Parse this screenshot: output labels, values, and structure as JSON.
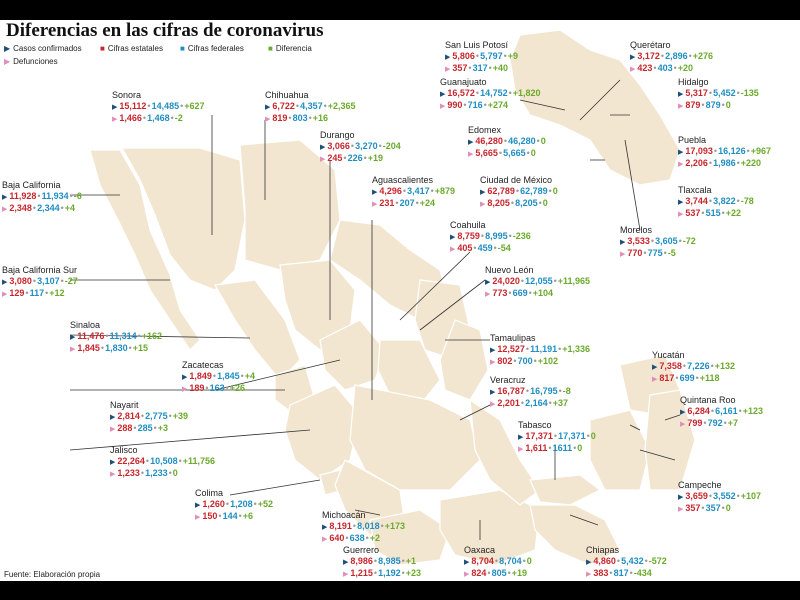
{
  "title": "Diferencias en las cifras de coronavirus",
  "legend": {
    "casos": "Casos confirmados",
    "estatales": "Cifras estatales",
    "federales": "Cifras federales",
    "diferencia": "Diferencia",
    "defunciones": "Defunciones"
  },
  "colors": {
    "estatal": "#c8262c",
    "federal": "#1f8ec2",
    "diferencia": "#6aaa2b",
    "casos": "#1f4e79",
    "defunciones": "#e08fb8",
    "map": "#f3e6d1"
  },
  "source": "Fuente: Elaboración propia",
  "states": [
    {
      "name": "Sonora",
      "c": [
        "15,112",
        "14,485",
        "+627"
      ],
      "d": [
        "1,466",
        "1,468",
        "-2"
      ]
    },
    {
      "name": "Chihuahua",
      "c": [
        "6,722",
        "4,357",
        "+2,365"
      ],
      "d": [
        "819",
        "803",
        "+16"
      ]
    },
    {
      "name": "Baja California",
      "c": [
        "11,928",
        "11,934",
        "-6"
      ],
      "d": [
        "2,348",
        "2,344",
        "+4"
      ]
    },
    {
      "name": "Durango",
      "c": [
        "3,066",
        "3,270",
        "-204"
      ],
      "d": [
        "245",
        "226",
        "+19"
      ]
    },
    {
      "name": "Aguascalientes",
      "c": [
        "4,296",
        "3,417",
        "+879"
      ],
      "d": [
        "231",
        "207",
        "+24"
      ]
    },
    {
      "name": "Baja California Sur",
      "c": [
        "3,080",
        "3,107",
        "-27"
      ],
      "d": [
        "129",
        "117",
        "+12"
      ]
    },
    {
      "name": "Coahuila",
      "c": [
        "8,759",
        "8,995",
        "-236"
      ],
      "d": [
        "405",
        "459",
        "-54"
      ]
    },
    {
      "name": "Nuevo León",
      "c": [
        "24,020",
        "12,055",
        "+11,965"
      ],
      "d": [
        "773",
        "669",
        "+104"
      ]
    },
    {
      "name": "Sinaloa",
      "c": [
        "11,476",
        "11,314",
        "+162"
      ],
      "d": [
        "1,845",
        "1,830",
        "+15"
      ]
    },
    {
      "name": "Zacatecas",
      "c": [
        "1,849",
        "1,845",
        "+4"
      ],
      "d": [
        "189",
        "163",
        "+26"
      ]
    },
    {
      "name": "Tamaulipas",
      "c": [
        "12,527",
        "11,191",
        "+1,336"
      ],
      "d": [
        "802",
        "700",
        "+102"
      ]
    },
    {
      "name": "Nayarit",
      "c": [
        "2,814",
        "2,775",
        "+39"
      ],
      "d": [
        "288",
        "285",
        "+3"
      ]
    },
    {
      "name": "Veracruz",
      "c": [
        "16,787",
        "16,795",
        "-8"
      ],
      "d": [
        "2,201",
        "2,164",
        "+37"
      ]
    },
    {
      "name": "Jalisco",
      "c": [
        "22,264",
        "10,508",
        "+11,756"
      ],
      "d": [
        "1,233",
        "1,233",
        "0"
      ]
    },
    {
      "name": "Tabasco",
      "c": [
        "17,371",
        "17,371",
        "0"
      ],
      "d": [
        "1,611",
        "1611",
        "0"
      ]
    },
    {
      "name": "Colima",
      "c": [
        "1,260",
        "1,208",
        "+52"
      ],
      "d": [
        "150",
        "144",
        "+6"
      ]
    },
    {
      "name": "Michoacán",
      "c": [
        "8,191",
        "8,018",
        "+173"
      ],
      "d": [
        "640",
        "638",
        "+2"
      ]
    },
    {
      "name": "Guerrero",
      "c": [
        "8,986",
        "8,985",
        "+1"
      ],
      "d": [
        "1,215",
        "1,192",
        "+23"
      ]
    },
    {
      "name": "Oaxaca",
      "c": [
        "8,704",
        "8,704",
        "0"
      ],
      "d": [
        "824",
        "805",
        "+19"
      ]
    },
    {
      "name": "Chiapas",
      "c": [
        "4,860",
        "5,432",
        "-572"
      ],
      "d": [
        "383",
        "817",
        "-434"
      ]
    },
    {
      "name": "San Luis Potosí",
      "c": [
        "5,806",
        "5,797",
        "+9"
      ],
      "d": [
        "357",
        "317",
        "+40"
      ]
    },
    {
      "name": "Guanajuato",
      "c": [
        "16,572",
        "14,752",
        "+1,820"
      ],
      "d": [
        "990",
        "716",
        "+274"
      ]
    },
    {
      "name": "Querétaro",
      "c": [
        "3,172",
        "2,896",
        "+276"
      ],
      "d": [
        "423",
        "403",
        "+20"
      ]
    },
    {
      "name": "Hidalgo",
      "c": [
        "5,317",
        "5,452",
        "-135"
      ],
      "d": [
        "879",
        "879",
        "0"
      ]
    },
    {
      "name": "Edomex",
      "c": [
        "46,280",
        "46,280",
        "0"
      ],
      "d": [
        "5,665",
        "5,665",
        "0"
      ]
    },
    {
      "name": "Puebla",
      "c": [
        "17,093",
        "16,126",
        "+967"
      ],
      "d": [
        "2,206",
        "1,986",
        "+220"
      ]
    },
    {
      "name": "Ciudad de México",
      "c": [
        "62,789",
        "62,789",
        "0"
      ],
      "d": [
        "8,205",
        "8,205",
        "0"
      ]
    },
    {
      "name": "Tlaxcala",
      "c": [
        "3,744",
        "3,822",
        "-78"
      ],
      "d": [
        "537",
        "515",
        "+22"
      ]
    },
    {
      "name": "Morelos",
      "c": [
        "3,533",
        "3,605",
        "-72"
      ],
      "d": [
        "770",
        "775",
        "-5"
      ]
    },
    {
      "name": "Yucatán",
      "c": [
        "7,358",
        "7,226",
        "+132"
      ],
      "d": [
        "817",
        "699",
        "+118"
      ]
    },
    {
      "name": "Quintana Roo",
      "c": [
        "6,284",
        "6,161",
        "+123"
      ],
      "d": [
        "799",
        "792",
        "+7"
      ]
    },
    {
      "name": "Campeche",
      "c": [
        "3,659",
        "3,552",
        "+107"
      ],
      "d": [
        "357",
        "357",
        "0"
      ]
    }
  ]
}
